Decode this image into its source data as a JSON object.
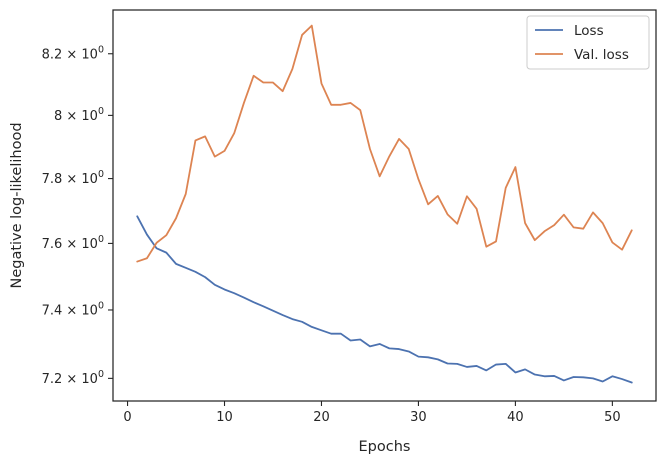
{
  "chart_data": {
    "type": "line",
    "title": "",
    "xlabel": "Epochs",
    "ylabel": "Negative log-likelihood",
    "xlim": [
      -1.5,
      54.5
    ],
    "ylim": [
      7.135,
      8.345
    ],
    "yscale": "log",
    "grid": false,
    "legend": "top-right",
    "x_ticks": [
      {
        "value": 0,
        "label": "0"
      },
      {
        "value": 10,
        "label": "10"
      },
      {
        "value": 20,
        "label": "20"
      },
      {
        "value": 30,
        "label": "30"
      },
      {
        "value": 40,
        "label": "40"
      },
      {
        "value": 50,
        "label": "50"
      }
    ],
    "y_ticks": [
      {
        "value": 7.2,
        "mantissa": "7.2",
        "base": "10",
        "exp": "0"
      },
      {
        "value": 7.4,
        "mantissa": "7.4",
        "base": "10",
        "exp": "0"
      },
      {
        "value": 7.6,
        "mantissa": "7.6",
        "base": "10",
        "exp": "0"
      },
      {
        "value": 7.8,
        "mantissa": "7.8",
        "base": "10",
        "exp": "0"
      },
      {
        "value": 8.0,
        "mantissa": "8",
        "base": "10",
        "exp": "0"
      },
      {
        "value": 8.2,
        "mantissa": "8.2",
        "base": "10",
        "exp": "0"
      }
    ],
    "times_sign": "×",
    "x": [
      1,
      2,
      3,
      4,
      5,
      6,
      7,
      8,
      9,
      10,
      11,
      12,
      13,
      14,
      15,
      16,
      17,
      18,
      19,
      20,
      21,
      22,
      23,
      24,
      25,
      26,
      27,
      28,
      29,
      30,
      31,
      32,
      33,
      34,
      35,
      36,
      37,
      38,
      39,
      40,
      41,
      42,
      43,
      44,
      45,
      46,
      47,
      48,
      49,
      50,
      51,
      52
    ],
    "series": [
      {
        "name": "Loss",
        "color": "#4c72b0",
        "values": [
          7.683,
          7.627,
          7.585,
          7.572,
          7.538,
          7.526,
          7.514,
          7.498,
          7.475,
          7.461,
          7.45,
          7.437,
          7.423,
          7.411,
          7.398,
          7.385,
          7.373,
          7.365,
          7.35,
          7.34,
          7.33,
          7.33,
          7.31,
          7.313,
          7.293,
          7.3,
          7.287,
          7.285,
          7.278,
          7.263,
          7.261,
          7.255,
          7.243,
          7.242,
          7.233,
          7.236,
          7.223,
          7.24,
          7.242,
          7.217,
          7.226,
          7.211,
          7.206,
          7.207,
          7.194,
          7.204,
          7.203,
          7.2,
          7.191,
          7.206,
          7.198,
          7.188
        ]
      },
      {
        "name": "Val. loss",
        "color": "#dd8452",
        "values": [
          7.545,
          7.555,
          7.602,
          7.625,
          7.677,
          7.752,
          7.92,
          7.933,
          7.869,
          7.887,
          7.943,
          8.04,
          8.128,
          8.106,
          8.106,
          8.078,
          8.15,
          8.262,
          8.293,
          8.103,
          8.034,
          8.034,
          8.04,
          8.017,
          7.893,
          7.807,
          7.87,
          7.925,
          7.893,
          7.798,
          7.72,
          7.746,
          7.689,
          7.66,
          7.745,
          7.706,
          7.59,
          7.606,
          7.771,
          7.836,
          7.662,
          7.61,
          7.637,
          7.656,
          7.688,
          7.649,
          7.645,
          7.695,
          7.662,
          7.603,
          7.581,
          7.64
        ]
      }
    ]
  }
}
